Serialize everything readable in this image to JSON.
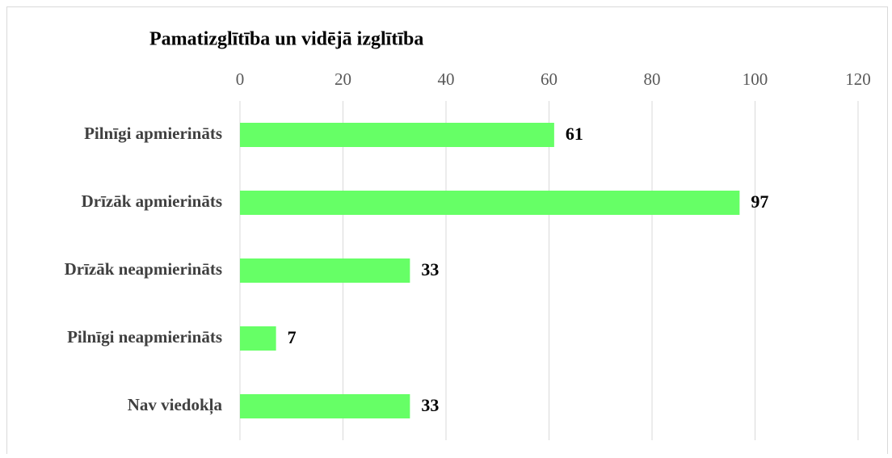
{
  "chart_data": {
    "type": "barh",
    "title": "Pamatizglītība un vidējā izglītība",
    "categories": [
      "Pilnīgi apmierināts",
      "Drīzāk apmierināts",
      "Drīzāk neapmierināts",
      "Pilnīgi neapmierināts",
      "Nav viedokļa"
    ],
    "values": [
      61,
      97,
      33,
      7,
      33
    ],
    "color": "#66ff66",
    "xlim": [
      0,
      120
    ],
    "xticks": [
      0,
      20,
      40,
      60,
      80,
      100,
      120
    ],
    "grid": true
  }
}
